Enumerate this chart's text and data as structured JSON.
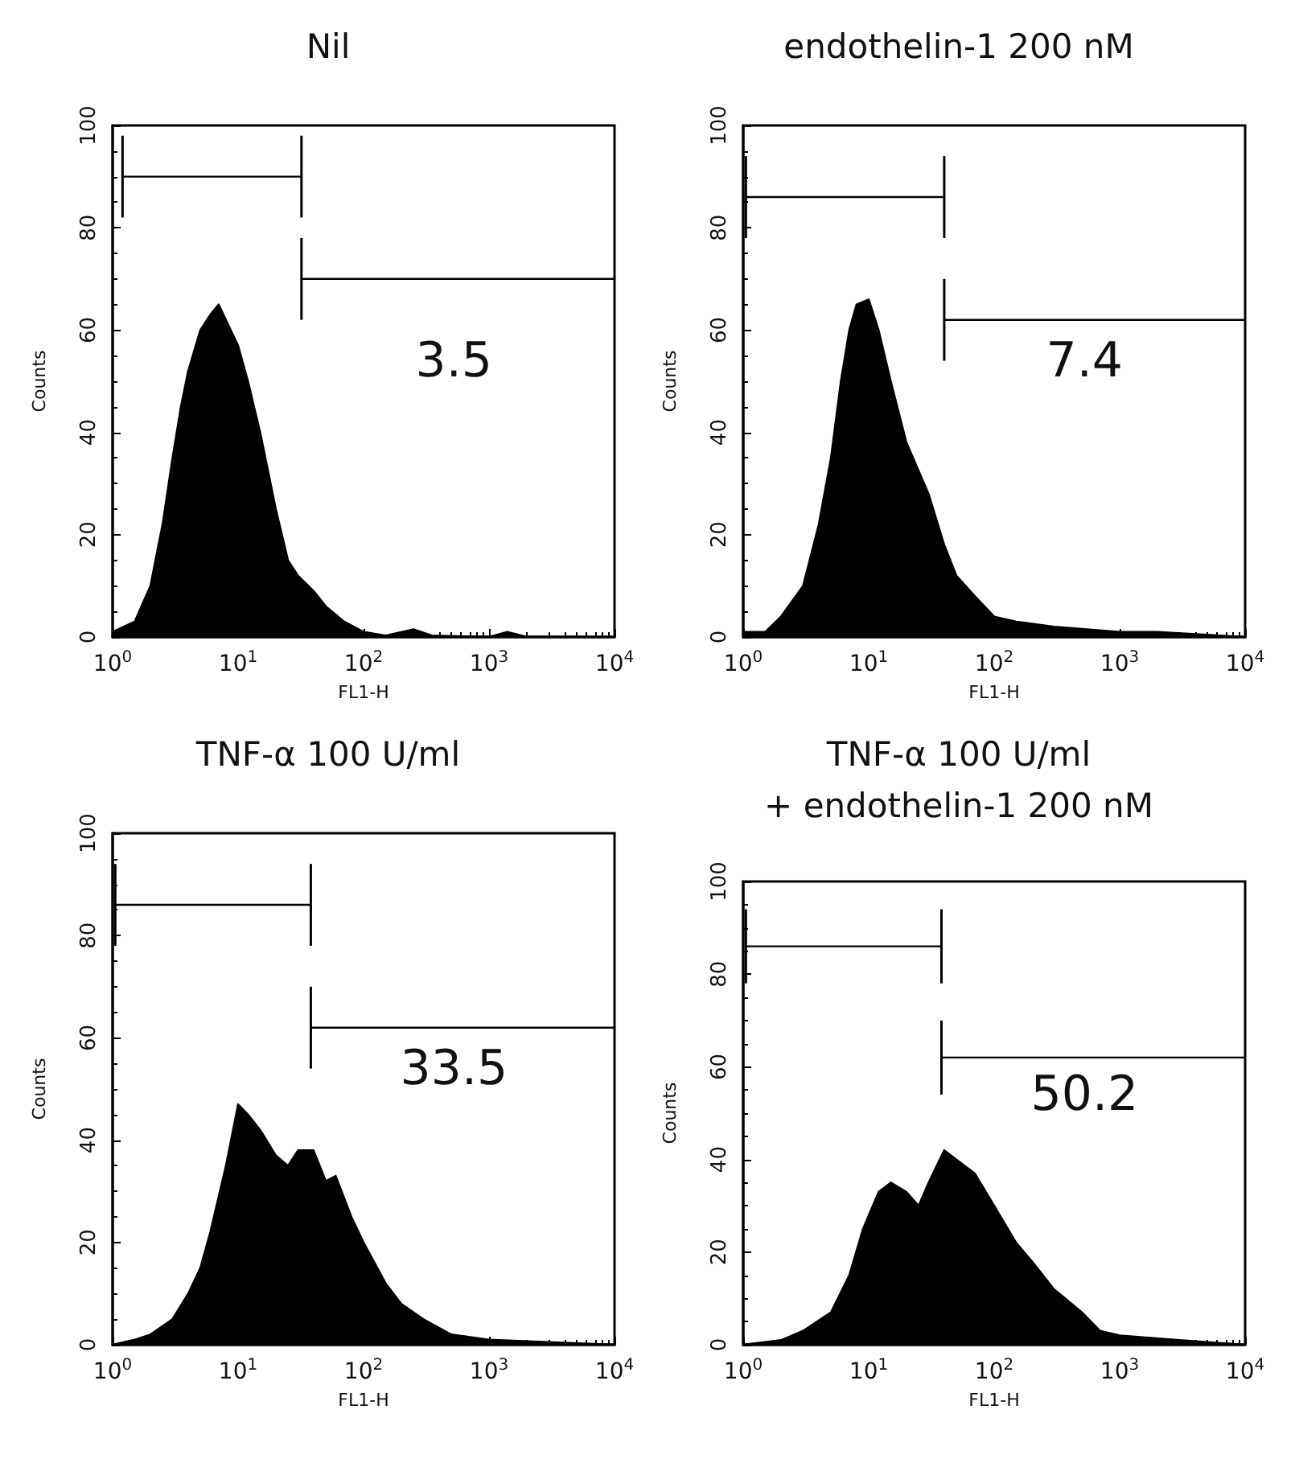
{
  "chart_data": [
    {
      "type": "area",
      "title": "Nil",
      "xlabel": "FL1-H",
      "ylabel": "Counts",
      "log": "x",
      "xlim": [
        1,
        10000
      ],
      "ylim": [
        0,
        100
      ],
      "xticks": [
        {
          "value": 1,
          "label": "10$^{0}$"
        },
        {
          "value": 10,
          "label": "10$^{1}$"
        },
        {
          "value": 100,
          "label": "10$^{2}$"
        },
        {
          "value": 1000,
          "label": "10$^{3}$"
        },
        {
          "value": 10000,
          "label": "10$^{4}$"
        }
      ],
      "yticks": [
        0,
        20,
        40,
        60,
        80,
        100
      ],
      "grid": false,
      "series": [
        {
          "color": "#000000",
          "x": [
            1,
            1.5,
            2,
            2.5,
            3,
            3.5,
            4,
            5,
            6,
            7,
            8,
            10,
            12,
            15,
            20,
            25,
            30,
            40,
            50,
            70,
            100,
            150,
            250,
            350,
            1000,
            1400,
            2000,
            10000
          ],
          "values": [
            1,
            3,
            10,
            22,
            35,
            45,
            52,
            60,
            63,
            65,
            62,
            57,
            50,
            40,
            25,
            15,
            12,
            9,
            6,
            3,
            1,
            0.3,
            1.5,
            0.3,
            0,
            1,
            0,
            0
          ]
        },
        {
          "type": "line",
          "color": "#000000",
          "x": [
            1.2,
            32
          ],
          "values": [
            90,
            90
          ],
          "errors": [
            8,
            8
          ]
        },
        {
          "type": "line",
          "color": "#000000",
          "x": [
            32,
            10000
          ],
          "values": [
            70,
            70
          ],
          "errors": [
            8,
            0
          ]
        }
      ],
      "annotations": [
        "3.5"
      ]
    },
    {
      "type": "area",
      "title": "endothelin-1 200 nM",
      "xlabel": "FL1-H",
      "ylabel": "Counts",
      "log": "x",
      "xlim": [
        1,
        10000
      ],
      "ylim": [
        0,
        100
      ],
      "xticks": [
        {
          "value": 1,
          "label": "10$^{0}$"
        },
        {
          "value": 10,
          "label": "10$^{1}$"
        },
        {
          "value": 100,
          "label": "10$^{2}$"
        },
        {
          "value": 1000,
          "label": "10$^{3}$"
        },
        {
          "value": 10000,
          "label": "10$^{4}$"
        }
      ],
      "yticks": [
        0,
        20,
        40,
        60,
        80,
        100
      ],
      "grid": false,
      "series": [
        {
          "color": "#000000",
          "x": [
            1,
            1.5,
            2,
            3,
            4,
            5,
            6,
            7,
            8,
            10,
            12,
            15,
            20,
            30,
            40,
            50,
            70,
            100,
            150,
            300,
            1000,
            2000,
            10000
          ],
          "values": [
            1,
            1,
            4,
            10,
            22,
            35,
            50,
            60,
            65,
            66,
            60,
            50,
            38,
            28,
            18,
            12,
            8,
            4,
            3,
            2,
            1,
            1,
            0
          ]
        },
        {
          "type": "line",
          "color": "#000000",
          "x": [
            1.05,
            40
          ],
          "values": [
            86,
            86
          ],
          "errors": [
            8,
            8
          ]
        },
        {
          "type": "line",
          "color": "#000000",
          "x": [
            40,
            10000
          ],
          "values": [
            62,
            62
          ],
          "errors": [
            8,
            0
          ]
        }
      ],
      "annotations": [
        "7.4"
      ]
    },
    {
      "type": "area",
      "title": "TNF-α 100 U/ml",
      "xlabel": "FL1-H",
      "ylabel": "Counts",
      "log": "x",
      "xlim": [
        1,
        10000
      ],
      "ylim": [
        0,
        100
      ],
      "xticks": [
        {
          "value": 1,
          "label": "10$^{0}$"
        },
        {
          "value": 10,
          "label": "10$^{1}$"
        },
        {
          "value": 100,
          "label": "10$^{2}$"
        },
        {
          "value": 1000,
          "label": "10$^{3}$"
        },
        {
          "value": 10000,
          "label": "10$^{4}$"
        }
      ],
      "yticks": [
        0,
        20,
        40,
        60,
        80,
        100
      ],
      "grid": false,
      "series": [
        {
          "color": "#000000",
          "x": [
            1,
            1.5,
            2,
            3,
            4,
            5,
            6,
            8,
            10,
            12,
            15,
            20,
            25,
            30,
            40,
            50,
            60,
            80,
            100,
            150,
            200,
            300,
            500,
            1000,
            3000,
            10000
          ],
          "values": [
            0,
            1,
            2,
            5,
            10,
            15,
            22,
            35,
            47,
            45,
            42,
            37,
            35,
            38,
            38,
            32,
            33,
            25,
            20,
            12,
            8,
            5,
            2,
            1,
            0.5,
            0
          ]
        },
        {
          "type": "line",
          "color": "#000000",
          "x": [
            1.05,
            38
          ],
          "values": [
            86,
            86
          ],
          "errors": [
            8,
            8
          ]
        },
        {
          "type": "line",
          "color": "#000000",
          "x": [
            38,
            10000
          ],
          "values": [
            62,
            62
          ],
          "errors": [
            8,
            0
          ]
        }
      ],
      "annotations": [
        "33.5"
      ]
    },
    {
      "type": "area",
      "title": "TNF-α 100 U/ml\n+ endothelin-1 200 nM",
      "xlabel": "FL1-H",
      "ylabel": "Counts",
      "log": "x",
      "xlim": [
        1,
        10000
      ],
      "ylim": [
        0,
        100
      ],
      "xticks": [
        {
          "value": 1,
          "label": "10$^{0}$"
        },
        {
          "value": 10,
          "label": "10$^{1}$"
        },
        {
          "value": 100,
          "label": "10$^{2}$"
        },
        {
          "value": 1000,
          "label": "10$^{3}$"
        },
        {
          "value": 10000,
          "label": "10$^{4}$"
        }
      ],
      "yticks": [
        0,
        20,
        40,
        60,
        80,
        100
      ],
      "grid": false,
      "series": [
        {
          "color": "#000000",
          "x": [
            1,
            2,
            3,
            5,
            7,
            9,
            12,
            15,
            20,
            25,
            30,
            40,
            50,
            70,
            100,
            150,
            200,
            300,
            500,
            700,
            1000,
            3000,
            10000
          ],
          "values": [
            0,
            1,
            3,
            7,
            15,
            25,
            33,
            35,
            33,
            30,
            35,
            42,
            40,
            37,
            30,
            22,
            18,
            12,
            7,
            3,
            2,
            1,
            0
          ]
        },
        {
          "type": "line",
          "color": "#000000",
          "x": [
            1.05,
            38
          ],
          "values": [
            86,
            86
          ],
          "errors": [
            8,
            8
          ]
        },
        {
          "type": "line",
          "color": "#000000",
          "x": [
            38,
            10000
          ],
          "values": [
            62,
            62
          ],
          "errors": [
            8,
            0
          ]
        }
      ],
      "annotations": [
        "50.2"
      ]
    }
  ]
}
